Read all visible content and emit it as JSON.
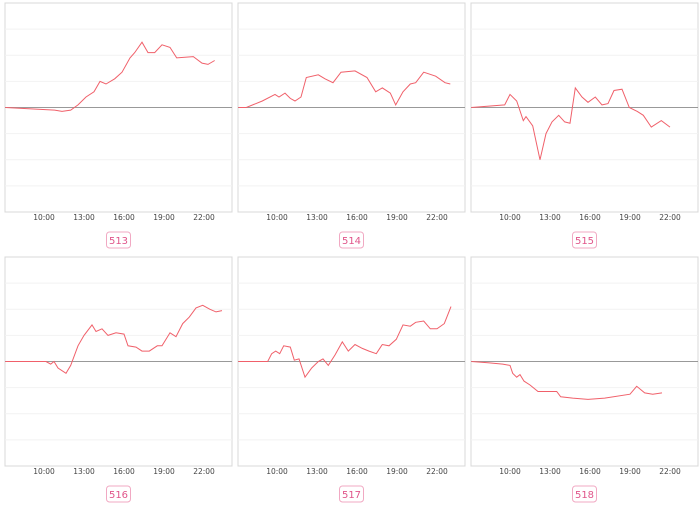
{
  "chart_data": [
    {
      "type": "line",
      "label": "513",
      "color": "#f0606a",
      "xlim": [
        7.075,
        24.1
      ],
      "ylim": [
        -4,
        4
      ],
      "xticks": [
        {
          "value": 10,
          "label": "10:00"
        },
        {
          "value": 13,
          "label": "13:00"
        },
        {
          "value": 16,
          "label": "16:00"
        },
        {
          "value": 19,
          "label": "19:00"
        },
        {
          "value": 22,
          "label": "22:00"
        }
      ],
      "yticks": [
        -3,
        -2,
        -1,
        0,
        1,
        2,
        3
      ],
      "x": [
        7.1,
        10.8,
        11.35,
        12,
        12.55,
        13.15,
        13.75,
        14.2,
        14.65,
        15.3,
        15.85,
        16.45,
        16.8,
        17.35,
        17.8,
        18.3,
        18.85,
        19.45,
        19.95,
        21.2,
        21.85,
        22.3,
        22.8
      ],
      "values": [
        0,
        -0.1,
        -0.15,
        -0.1,
        0.1,
        0.4,
        0.6,
        1.0,
        0.9,
        1.1,
        1.35,
        1.9,
        2.1,
        2.5,
        2.1,
        2.1,
        2.4,
        2.3,
        1.9,
        1.95,
        1.7,
        1.65,
        1.8
      ]
    },
    {
      "type": "line",
      "label": "514",
      "color": "#f0606a",
      "xlim": [
        7.075,
        24.1
      ],
      "ylim": [
        -4,
        4
      ],
      "xticks": [
        {
          "value": 10,
          "label": "10:00"
        },
        {
          "value": 13,
          "label": "13:00"
        },
        {
          "value": 16,
          "label": "16:00"
        },
        {
          "value": 19,
          "label": "19:00"
        },
        {
          "value": 22,
          "label": "22:00"
        }
      ],
      "yticks": [
        -3,
        -2,
        -1,
        0,
        1,
        2,
        3
      ],
      "x": [
        7.1,
        7.7,
        8.9,
        9.85,
        10.15,
        10.6,
        11,
        11.35,
        11.8,
        12.2,
        13.1,
        13.6,
        14.2,
        14.8,
        15.85,
        16.75,
        17.4,
        17.9,
        18.5,
        18.9,
        19.45,
        20,
        20.4,
        21,
        21.9,
        22.6,
        23
      ],
      "values": [
        0,
        0,
        0.25,
        0.5,
        0.4,
        0.55,
        0.35,
        0.25,
        0.4,
        1.15,
        1.25,
        1.1,
        0.95,
        1.35,
        1.4,
        1.15,
        0.6,
        0.75,
        0.55,
        0.1,
        0.6,
        0.9,
        0.95,
        1.35,
        1.2,
        0.95,
        0.9
      ]
    },
    {
      "type": "line",
      "label": "515",
      "color": "#f0606a",
      "xlim": [
        7.075,
        24.1
      ],
      "ylim": [
        -4,
        4
      ],
      "xticks": [
        {
          "value": 10,
          "label": "10:00"
        },
        {
          "value": 13,
          "label": "13:00"
        },
        {
          "value": 16,
          "label": "16:00"
        },
        {
          "value": 19,
          "label": "19:00"
        },
        {
          "value": 22,
          "label": "22:00"
        }
      ],
      "yticks": [
        -3,
        -2,
        -1,
        0,
        1,
        2,
        3
      ],
      "x": [
        7.1,
        9.6,
        10,
        10.5,
        11,
        11.2,
        11.7,
        12.25,
        12.7,
        13.15,
        13.65,
        14.1,
        14.5,
        14.9,
        15.4,
        15.85,
        16.4,
        16.9,
        17.35,
        17.8,
        18.4,
        18.95,
        19.55,
        20,
        20.6,
        21.35,
        22
      ],
      "values": [
        0,
        0.1,
        0.5,
        0.25,
        -0.5,
        -0.35,
        -0.7,
        -2.0,
        -1.0,
        -0.55,
        -0.3,
        -0.55,
        -0.6,
        0.75,
        0.4,
        0.2,
        0.4,
        0.1,
        0.15,
        0.65,
        0.7,
        0,
        -0.15,
        -0.3,
        -0.75,
        -0.5,
        -0.75
      ]
    },
    {
      "type": "line",
      "label": "516",
      "color": "#f0606a",
      "xlim": [
        7.075,
        24.1
      ],
      "ylim": [
        -4,
        4
      ],
      "xticks": [
        {
          "value": 10,
          "label": "10:00"
        },
        {
          "value": 13,
          "label": "13:00"
        },
        {
          "value": 16,
          "label": "16:00"
        },
        {
          "value": 19,
          "label": "19:00"
        },
        {
          "value": 22,
          "label": "22:00"
        }
      ],
      "yticks": [
        -3,
        -2,
        -1,
        0,
        1,
        2,
        3
      ],
      "x": [
        7.1,
        10.15,
        10.5,
        10.75,
        11.05,
        11.65,
        12,
        12.55,
        13,
        13.6,
        13.9,
        14.35,
        14.8,
        15.4,
        16,
        16.3,
        16.9,
        17.35,
        17.9,
        18.5,
        18.85,
        19.45,
        19.9,
        20.4,
        20.9,
        21.4,
        21.9,
        22.45,
        22.9,
        23.35
      ],
      "values": [
        0,
        0,
        -0.1,
        0,
        -0.25,
        -0.45,
        -0.15,
        0.6,
        1.0,
        1.4,
        1.15,
        1.25,
        1.0,
        1.1,
        1.05,
        0.6,
        0.55,
        0.4,
        0.4,
        0.6,
        0.6,
        1.1,
        0.95,
        1.45,
        1.7,
        2.05,
        2.15,
        2.0,
        1.9,
        1.95
      ]
    },
    {
      "type": "line",
      "label": "517",
      "color": "#f0606a",
      "xlim": [
        7.075,
        24.1
      ],
      "ylim": [
        -4,
        4
      ],
      "xticks": [
        {
          "value": 10,
          "label": "10:00"
        },
        {
          "value": 13,
          "label": "13:00"
        },
        {
          "value": 16,
          "label": "16:00"
        },
        {
          "value": 19,
          "label": "19:00"
        },
        {
          "value": 22,
          "label": "22:00"
        }
      ],
      "yticks": [
        -3,
        -2,
        -1,
        0,
        1,
        2,
        3
      ],
      "x": [
        7.1,
        9.3,
        9.6,
        9.9,
        10.2,
        10.5,
        11,
        11.3,
        11.65,
        12.1,
        12.6,
        13.1,
        13.45,
        13.85,
        14.35,
        14.9,
        15.35,
        15.85,
        16.4,
        16.9,
        17.45,
        17.9,
        18.4,
        18.95,
        19.45,
        20,
        20.4,
        21,
        21.5,
        22,
        22.55,
        23.05
      ],
      "values": [
        0,
        0,
        0.3,
        0.4,
        0.3,
        0.6,
        0.55,
        0.05,
        0.1,
        -0.6,
        -0.25,
        0,
        0.1,
        -0.15,
        0.25,
        0.75,
        0.4,
        0.65,
        0.5,
        0.4,
        0.3,
        0.65,
        0.6,
        0.85,
        1.4,
        1.35,
        1.5,
        1.55,
        1.25,
        1.25,
        1.45,
        2.1
      ]
    },
    {
      "type": "line",
      "label": "518",
      "color": "#f0606a",
      "xlim": [
        7.075,
        24.1
      ],
      "ylim": [
        -4,
        4
      ],
      "xticks": [
        {
          "value": 10,
          "label": "10:00"
        },
        {
          "value": 13,
          "label": "13:00"
        },
        {
          "value": 16,
          "label": "16:00"
        },
        {
          "value": 19,
          "label": "19:00"
        },
        {
          "value": 22,
          "label": "22:00"
        }
      ],
      "yticks": [
        -3,
        -2,
        -1,
        0,
        1,
        2,
        3
      ],
      "x": [
        7.1,
        8.35,
        9.45,
        10,
        10.2,
        10.5,
        10.75,
        11.05,
        11.5,
        12.1,
        12.85,
        13.5,
        13.8,
        14.7,
        15.85,
        17.1,
        19,
        19.5,
        20.1,
        20.7,
        21.4
      ],
      "values": [
        0,
        -0.05,
        -0.1,
        -0.15,
        -0.45,
        -0.6,
        -0.5,
        -0.75,
        -0.9,
        -1.15,
        -1.15,
        -1.15,
        -1.35,
        -1.4,
        -1.45,
        -1.4,
        -1.25,
        -0.95,
        -1.2,
        -1.25,
        -1.2
      ]
    }
  ]
}
